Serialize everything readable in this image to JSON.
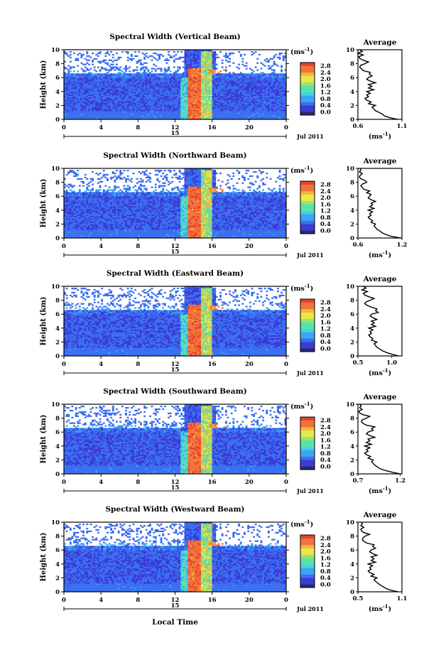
{
  "chart_data": [
    {
      "type": "heatmap",
      "title": "Spectral Width (Vertical Beam)",
      "ylabel": "Height (km)",
      "ylim": [
        0,
        10
      ],
      "yticks": [
        "0",
        "2",
        "4",
        "6",
        "8",
        "10"
      ],
      "xlim": [
        0,
        24
      ],
      "xticks": [
        "0",
        "4",
        "8",
        "12",
        "16",
        "20",
        "0"
      ],
      "day_marker": "15",
      "date_label": "Jul 2011",
      "colorbar": {
        "unit": "(ms",
        "unit_exp": "-1",
        "unit_close": ")",
        "ticks": [
          "0.0",
          "0.4",
          "0.8",
          "1.2",
          "1.6",
          "2.0",
          "2.4",
          "2.8"
        ],
        "range": [
          0.0,
          2.8
        ]
      },
      "average": {
        "title": "Average",
        "xlabel": "(ms",
        "xlabel_exp": "-1",
        "xlabel_close": ")",
        "xticks": [
          "0.6",
          "1.1"
        ],
        "xlim": [
          0.6,
          1.1
        ],
        "yticks": [
          "0",
          "2",
          "4",
          "6",
          "8",
          "10"
        ],
        "profile": [
          1.05,
          0.96,
          0.9,
          0.88,
          0.84,
          0.8,
          0.78,
          0.76,
          0.8,
          0.72,
          0.75,
          0.7,
          0.68,
          0.72,
          0.7,
          0.74,
          0.7,
          0.78,
          0.72,
          0.76,
          0.72,
          0.8,
          0.74,
          0.7,
          0.72,
          0.76,
          0.73,
          0.74,
          0.66,
          0.64,
          0.62,
          0.63,
          0.68,
          0.72,
          0.66,
          0.62,
          0.61,
          0.66,
          0.6,
          0.65,
          0.62
        ]
      }
    },
    {
      "type": "heatmap",
      "title": "Spectral Width (Northward Beam)",
      "ylabel": "Height (km)",
      "ylim": [
        0,
        10
      ],
      "yticks": [
        "0",
        "2",
        "4",
        "6",
        "8",
        "10"
      ],
      "xlim": [
        0,
        24
      ],
      "xticks": [
        "0",
        "4",
        "8",
        "12",
        "16",
        "20",
        "0"
      ],
      "day_marker": "15",
      "date_label": "Jul 2011",
      "colorbar": {
        "unit": "(ms",
        "unit_exp": "-1",
        "unit_close": ")",
        "ticks": [
          "0.0",
          "0.4",
          "0.8",
          "1.2",
          "1.6",
          "2.0",
          "2.4",
          "2.8"
        ],
        "range": [
          0.0,
          2.8
        ]
      },
      "average": {
        "title": "Average",
        "xlabel": "(ms",
        "xlabel_exp": "-1",
        "xlabel_close": ")",
        "xticks": [
          "0.6",
          "1.2"
        ],
        "xlim": [
          0.6,
          1.2
        ],
        "yticks": [
          "0",
          "2",
          "4",
          "6",
          "8",
          "10"
        ],
        "profile": [
          1.18,
          1.05,
          0.98,
          0.93,
          0.9,
          0.86,
          0.84,
          0.82,
          0.84,
          0.78,
          0.8,
          0.76,
          0.74,
          0.78,
          0.76,
          0.8,
          0.74,
          0.82,
          0.76,
          0.8,
          0.78,
          0.84,
          0.78,
          0.74,
          0.76,
          0.78,
          0.72,
          0.76,
          0.68,
          0.66,
          0.64,
          0.66,
          0.72,
          0.7,
          0.64,
          0.62,
          0.63,
          0.66,
          0.62,
          0.64,
          0.63
        ]
      }
    },
    {
      "type": "heatmap",
      "title": "Spectral Width (Eastward Beam)",
      "ylabel": "Height (km)",
      "ylim": [
        0,
        10
      ],
      "yticks": [
        "0",
        "2",
        "4",
        "6",
        "8",
        "10"
      ],
      "xlim": [
        0,
        24
      ],
      "xticks": [
        "0",
        "4",
        "8",
        "12",
        "16",
        "20",
        "0"
      ],
      "day_marker": "15",
      "date_label": "Jul 2011",
      "colorbar": {
        "unit": "(ms",
        "unit_exp": "-1",
        "unit_close": ")",
        "ticks": [
          "0.0",
          "0.4",
          "0.8",
          "1.2",
          "1.6",
          "2.0",
          "2.4",
          "2.8"
        ],
        "range": [
          0.0,
          2.8
        ]
      },
      "average": {
        "title": "Average",
        "xlabel": "(ms",
        "xlabel_exp": "-1",
        "xlabel_close": ")",
        "xticks": [
          "0.5",
          "1.0"
        ],
        "xlim": [
          0.5,
          1.15
        ],
        "yticks": [
          "0",
          "2",
          "4",
          "6",
          "8",
          "10"
        ],
        "profile": [
          1.1,
          1.0,
          0.92,
          0.86,
          0.82,
          0.78,
          0.76,
          0.74,
          0.78,
          0.7,
          0.72,
          0.68,
          0.66,
          0.7,
          0.68,
          0.72,
          0.66,
          0.76,
          0.7,
          0.74,
          0.7,
          0.78,
          0.72,
          0.68,
          0.7,
          0.8,
          0.76,
          0.78,
          0.7,
          0.64,
          0.6,
          0.62,
          0.68,
          0.74,
          0.66,
          0.6,
          0.58,
          0.64,
          0.56,
          0.62,
          0.58
        ]
      }
    },
    {
      "type": "heatmap",
      "title": "Spectral Width (Southward Beam)",
      "ylabel": "Height (km)",
      "ylim": [
        0,
        10
      ],
      "yticks": [
        "0",
        "2",
        "4",
        "6",
        "8",
        "10"
      ],
      "xlim": [
        0,
        24
      ],
      "xticks": [
        "0",
        "4",
        "8",
        "12",
        "16",
        "20",
        "0"
      ],
      "day_marker": "15",
      "date_label": "Jul 2011",
      "colorbar": {
        "unit": "(ms",
        "unit_exp": "-1",
        "unit_close": ")",
        "ticks": [
          "0.0",
          "0.4",
          "0.8",
          "1.2",
          "1.6",
          "2.0",
          "2.4",
          "2.8"
        ],
        "range": [
          0.0,
          2.8
        ]
      },
      "average": {
        "title": "Average",
        "xlabel": "(ms",
        "xlabel_exp": "-1",
        "xlabel_close": ")",
        "xticks": [
          "0.7",
          "1.2"
        ],
        "xlim": [
          0.7,
          1.22
        ],
        "yticks": [
          "0",
          "2",
          "4",
          "6",
          "8",
          "10"
        ],
        "profile": [
          1.2,
          1.1,
          1.02,
          0.96,
          0.93,
          0.9,
          0.88,
          0.86,
          0.88,
          0.82,
          0.85,
          0.8,
          0.78,
          0.82,
          0.8,
          0.84,
          0.78,
          0.86,
          0.8,
          0.84,
          0.82,
          0.9,
          0.84,
          0.8,
          0.82,
          0.88,
          0.86,
          0.9,
          0.8,
          0.76,
          0.74,
          0.75,
          0.8,
          0.84,
          0.76,
          0.72,
          0.71,
          0.75,
          0.72,
          0.74,
          0.72
        ]
      }
    },
    {
      "type": "heatmap",
      "title": "Spectral Width (Westward Beam)",
      "ylabel": "Height (km)",
      "ylim": [
        0,
        10
      ],
      "yticks": [
        "0",
        "2",
        "4",
        "6",
        "8",
        "10"
      ],
      "xlim": [
        0,
        24
      ],
      "xticks": [
        "0",
        "4",
        "8",
        "12",
        "16",
        "20",
        "0"
      ],
      "day_marker": "15",
      "date_label": "Jul 2011",
      "colorbar": {
        "unit": "(ms",
        "unit_exp": "-1",
        "unit_close": ")",
        "ticks": [
          "0.0",
          "0.4",
          "0.8",
          "1.2",
          "1.6",
          "2.0",
          "2.4",
          "2.8"
        ],
        "range": [
          0.0,
          2.8
        ]
      },
      "average": {
        "title": "Average",
        "xlabel": "(ms",
        "xlabel_exp": "-1",
        "xlabel_close": ")",
        "xticks": [
          "0.5",
          "1.1"
        ],
        "xlim": [
          0.5,
          1.1
        ],
        "yticks": [
          "0",
          "2",
          "4",
          "6",
          "8",
          "10"
        ],
        "profile": [
          1.05,
          0.94,
          0.88,
          0.84,
          0.8,
          0.77,
          0.74,
          0.72,
          0.76,
          0.68,
          0.72,
          0.66,
          0.64,
          0.68,
          0.66,
          0.7,
          0.64,
          0.74,
          0.68,
          0.72,
          0.68,
          0.76,
          0.7,
          0.66,
          0.68,
          0.74,
          0.7,
          0.72,
          0.62,
          0.58,
          0.56,
          0.57,
          0.6,
          0.66,
          0.58,
          0.55,
          0.54,
          0.58,
          0.54,
          0.56,
          0.55
        ]
      }
    }
  ],
  "figure": {
    "xlabel": "Local Time",
    "palette": [
      "#2a2a6a",
      "#3b3bd8",
      "#3a6ff0",
      "#3aa6f5",
      "#47d3e0",
      "#57e4a8",
      "#9be36a",
      "#e8e84a",
      "#f5b43a",
      "#f2743a",
      "#e8402c"
    ]
  }
}
